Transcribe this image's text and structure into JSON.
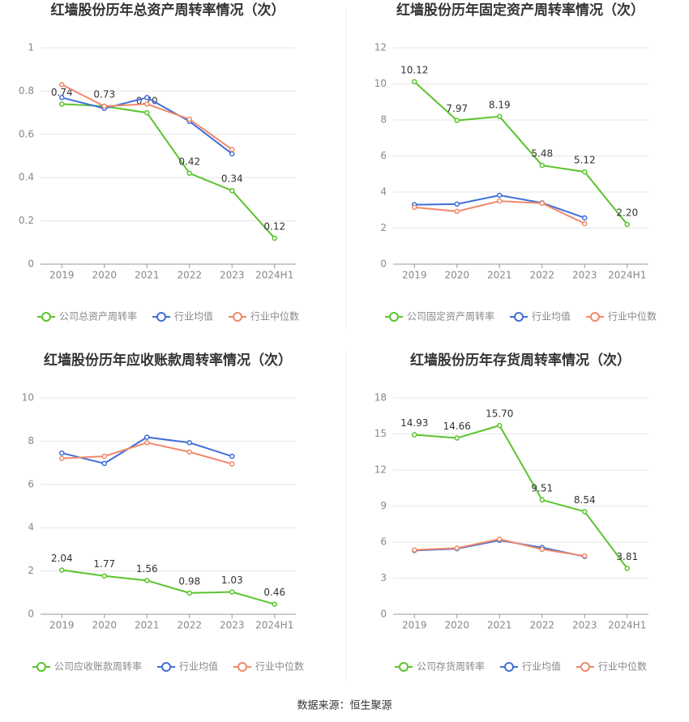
{
  "chart_data": [
    {
      "type": "line",
      "title": "红墙股份历年总资产周转率情况（次）",
      "categories": [
        "2019",
        "2020",
        "2021",
        "2022",
        "2023",
        "2024H1"
      ],
      "series": [
        {
          "name": "公司总资产周转率",
          "color": "#5ac42d",
          "values": [
            0.74,
            0.73,
            0.7,
            0.42,
            0.34,
            0.12
          ],
          "value_labels": [
            "0.74",
            "0.73",
            "0.70",
            "0.42",
            "0.34",
            "0.12"
          ]
        },
        {
          "name": "行业均值",
          "color": "#3f6fd8",
          "values": [
            0.77,
            0.72,
            0.77,
            0.66,
            0.51,
            null
          ]
        },
        {
          "name": "行业中位数",
          "color": "#f0896a",
          "values": [
            0.83,
            0.73,
            0.74,
            0.67,
            0.53,
            null
          ]
        }
      ],
      "ylim": [
        0,
        1
      ],
      "yticks": [
        0,
        0.2,
        0.4,
        0.6,
        0.8,
        1
      ],
      "grid": true
    },
    {
      "type": "line",
      "title": "红墙股份历年固定资产周转率情况（次）",
      "categories": [
        "2019",
        "2020",
        "2021",
        "2022",
        "2023",
        "2024H1"
      ],
      "series": [
        {
          "name": "公司固定资产周转率",
          "color": "#5ac42d",
          "values": [
            10.12,
            7.97,
            8.19,
            5.48,
            5.12,
            2.2
          ],
          "value_labels": [
            "10.12",
            "7.97",
            "8.19",
            "5.48",
            "5.12",
            "2.20"
          ]
        },
        {
          "name": "行业均值",
          "color": "#3f6fd8",
          "values": [
            3.3,
            3.33,
            3.82,
            3.4,
            2.57,
            null
          ]
        },
        {
          "name": "行业中位数",
          "color": "#f0896a",
          "values": [
            3.15,
            2.93,
            3.5,
            3.38,
            2.25,
            null
          ]
        }
      ],
      "ylim": [
        0,
        12
      ],
      "yticks": [
        0,
        2,
        4,
        6,
        8,
        10,
        12
      ],
      "grid": true
    },
    {
      "type": "line",
      "title": "红墙股份历年应收账款周转率情况（次）",
      "categories": [
        "2019",
        "2020",
        "2021",
        "2022",
        "2023",
        "2024H1"
      ],
      "series": [
        {
          "name": "公司应收账款周转率",
          "color": "#5ac42d",
          "values": [
            2.04,
            1.77,
            1.56,
            0.98,
            1.03,
            0.46
          ],
          "value_labels": [
            "2.04",
            "1.77",
            "1.56",
            "0.98",
            "1.03",
            "0.46"
          ]
        },
        {
          "name": "行业均值",
          "color": "#3f6fd8",
          "values": [
            7.45,
            6.97,
            8.18,
            7.93,
            7.3,
            null
          ]
        },
        {
          "name": "行业中位数",
          "color": "#f0896a",
          "values": [
            7.2,
            7.3,
            7.93,
            7.5,
            6.95,
            null
          ]
        }
      ],
      "ylim": [
        0,
        10
      ],
      "yticks": [
        0,
        2,
        4,
        6,
        8,
        10
      ],
      "grid": true
    },
    {
      "type": "line",
      "title": "红墙股份历年存货周转率情况（次）",
      "categories": [
        "2019",
        "2020",
        "2021",
        "2022",
        "2023",
        "2024H1"
      ],
      "series": [
        {
          "name": "公司存货周转率",
          "color": "#5ac42d",
          "values": [
            14.93,
            14.66,
            15.7,
            9.51,
            8.54,
            3.81
          ],
          "value_labels": [
            "14.93",
            "14.66",
            "15.70",
            "9.51",
            "8.54",
            "3.81"
          ]
        },
        {
          "name": "行业均值",
          "color": "#3f6fd8",
          "values": [
            5.3,
            5.45,
            6.15,
            5.55,
            4.8,
            null
          ]
        },
        {
          "name": "行业中位数",
          "color": "#f0896a",
          "values": [
            5.35,
            5.5,
            6.25,
            5.4,
            4.85,
            null
          ]
        }
      ],
      "ylim": [
        0,
        18
      ],
      "yticks": [
        0,
        3,
        6,
        9,
        12,
        15,
        18
      ],
      "grid": true
    }
  ],
  "source": "数据来源：恒生聚源"
}
